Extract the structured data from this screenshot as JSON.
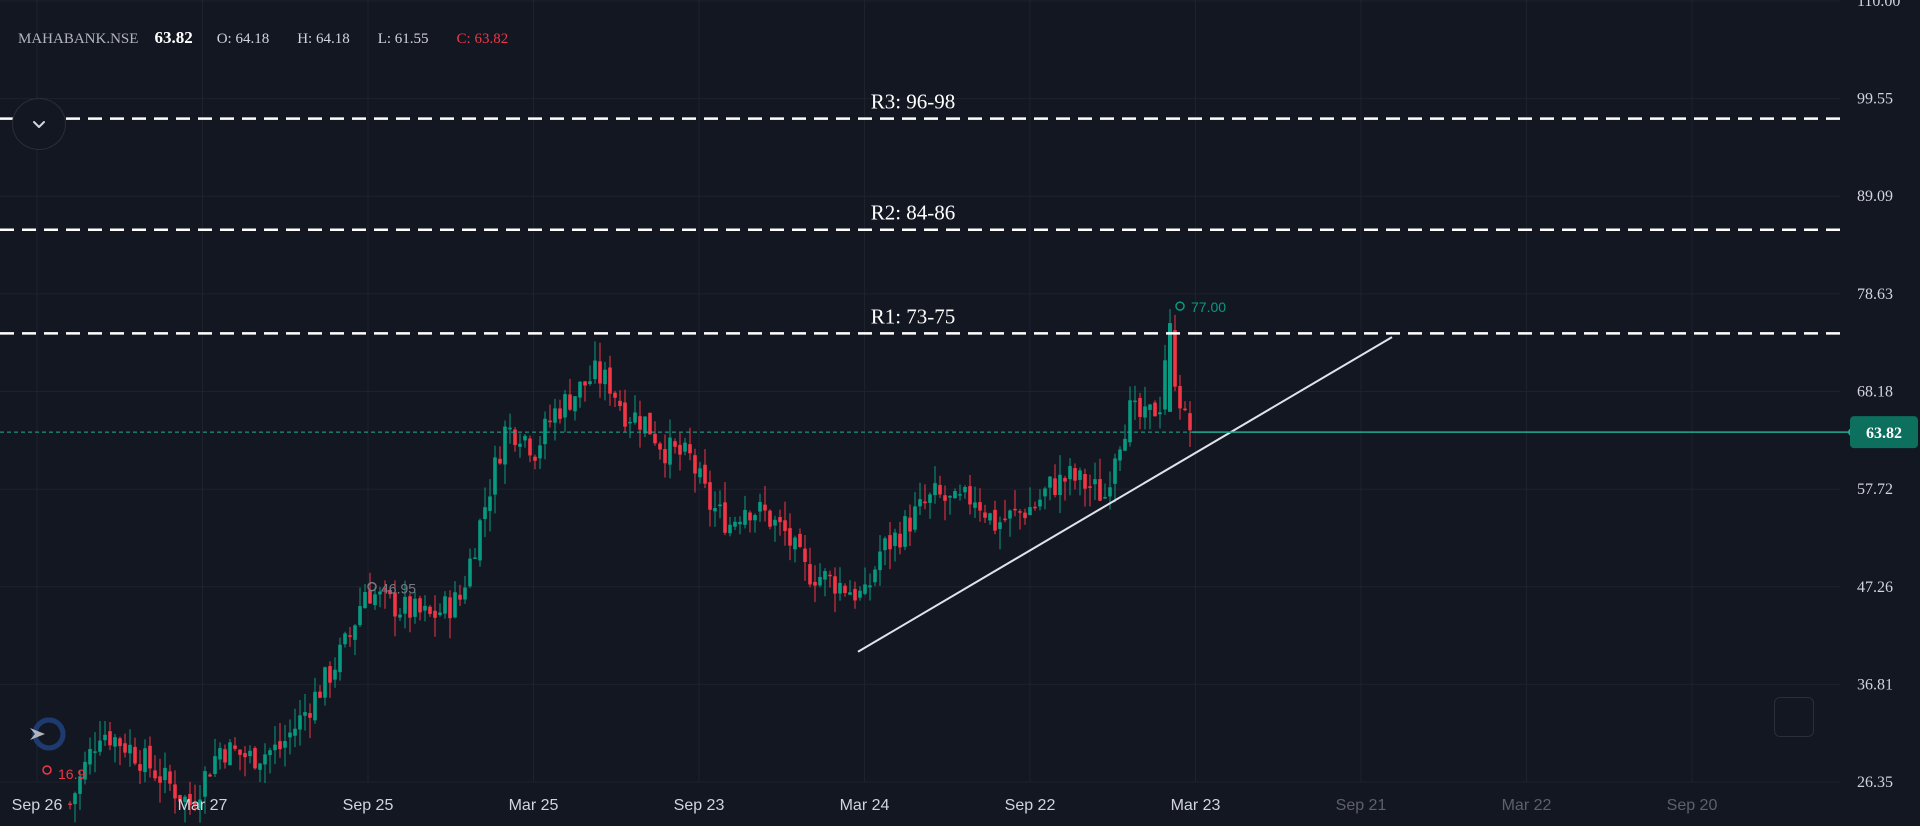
{
  "header": {
    "symbol": "MAHABANK.NSE",
    "last": "63.82",
    "open": "O: 64.18",
    "high": "H: 64.18",
    "low": "L: 61.55",
    "close": "C: 63.82"
  },
  "colors": {
    "background": "#131722",
    "grid": "#1e222d",
    "up": "#089981",
    "down": "#f23645",
    "level_line": "#ffffff",
    "price_line": "#22ab94"
  },
  "icons": {
    "collapse": "chevron-down-icon",
    "logo": "tradingview-logo-icon",
    "corner": "square-icon"
  },
  "chart_data": {
    "type": "candlestick",
    "y_ticks": [
      "110.00",
      "99.55",
      "89.09",
      "78.63",
      "68.18",
      "57.72",
      "47.26",
      "36.81",
      "26.35"
    ],
    "ylim": [
      26.35,
      110.0
    ],
    "x_ticks": [
      "Sep 26",
      "Mar 27",
      "Sep 25",
      "Mar 25",
      "Sep 23",
      "Mar 24",
      "Sep 22",
      "Mar 23",
      "Sep 21",
      "Mar 22",
      "Sep 20"
    ],
    "future_ticks": [
      "Sep 21",
      "Mar 22",
      "Sep 20"
    ],
    "last_price": 63.82,
    "last_price_label": "63.82",
    "high_marker": {
      "label": "77.00",
      "value": 77.0
    },
    "mid_marker": {
      "label": "46.95",
      "value": 46.95
    },
    "low_marker": {
      "label": "16.9",
      "value": 16.9
    },
    "levels": [
      {
        "label": "R3: 96-98",
        "value": 97.4
      },
      {
        "label": "R2: 84-86",
        "value": 85.5
      },
      {
        "label": "R1: 73-75",
        "value": 74.4
      }
    ],
    "trendline": {
      "from_value": 40.3,
      "to_value": 74.0
    },
    "candles_description": "Daily-ish candles rising from ~17 (left) to ~74 peak, pulling back to ~43, then rising along trendline to 77 spike and settling near 63.82"
  }
}
